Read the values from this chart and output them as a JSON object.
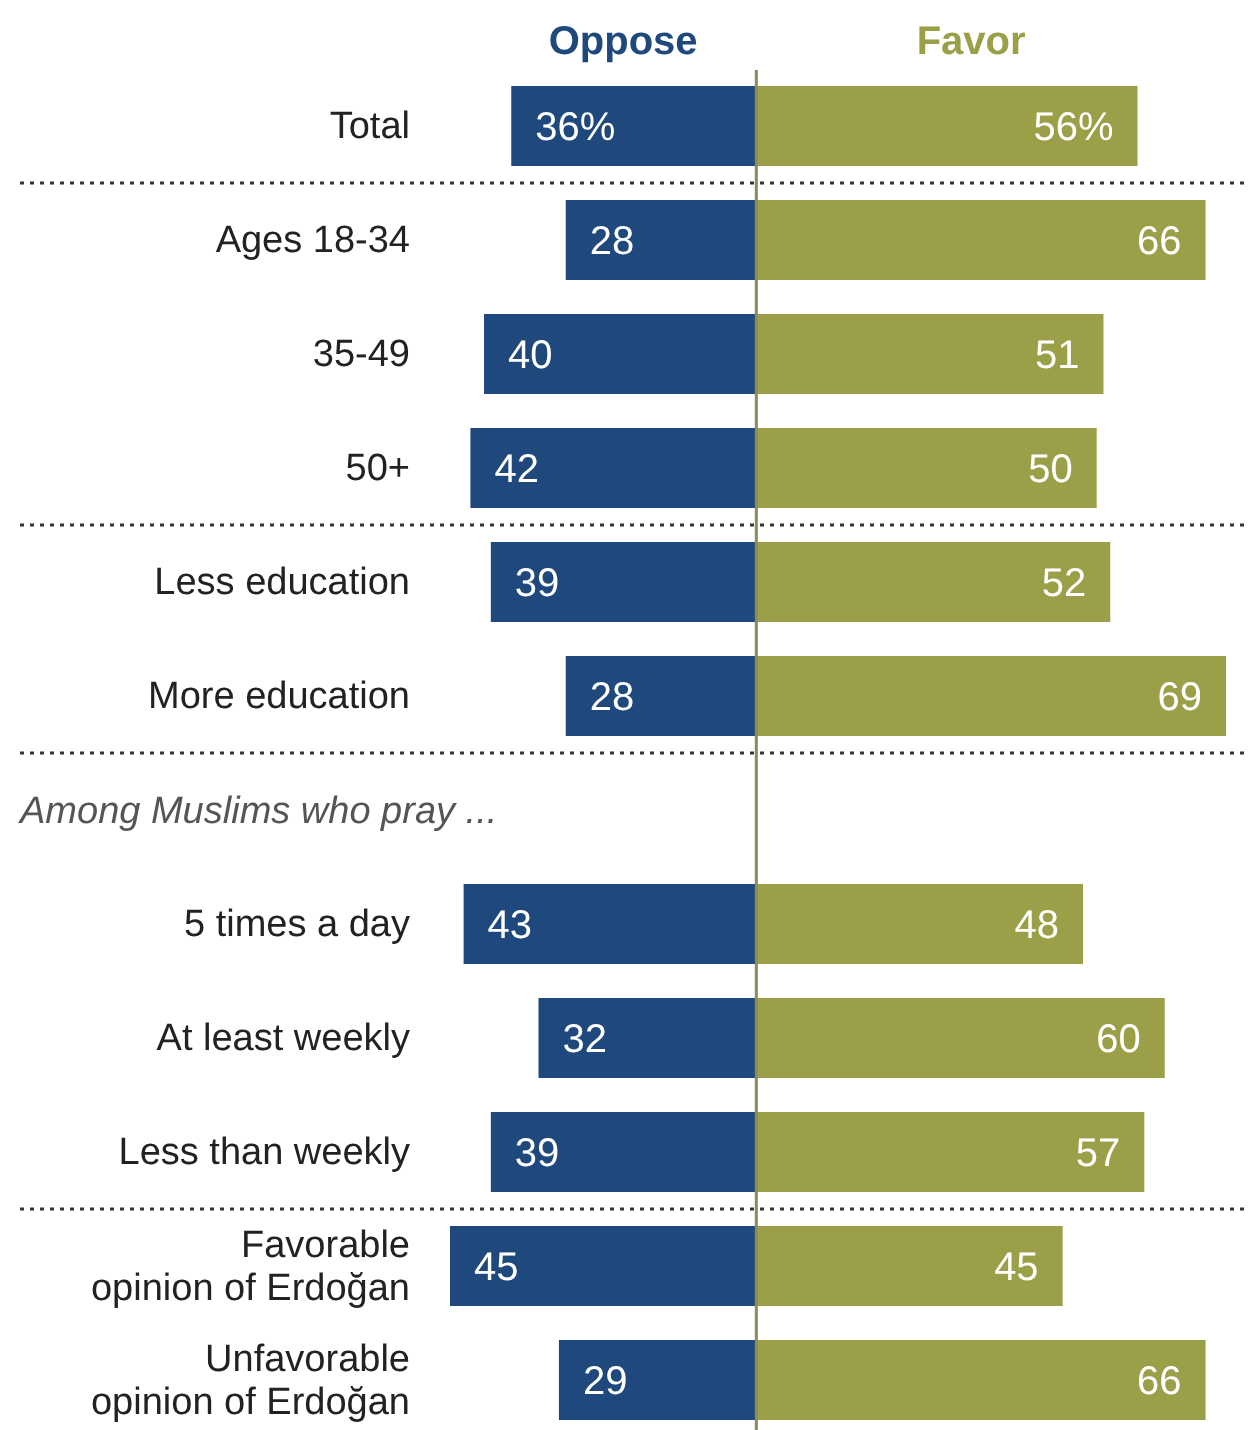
{
  "chart_data": [
    {
      "type": "bar",
      "orientation": "horizontal",
      "title": "Oppose",
      "xlim": [
        45,
        0
      ],
      "categories": [
        "Total",
        "Ages 18-34",
        "35-49",
        "50+",
        "Less education",
        "More education",
        null,
        "5 times a day",
        "At least weekly",
        "Less than weekly",
        "Favorable opinion of Erdoğan",
        "Unfavorable opinion of Erdoğan"
      ],
      "values": [
        36,
        28,
        40,
        42,
        39,
        28,
        null,
        43,
        32,
        39,
        45,
        29
      ],
      "color": "#1f497d",
      "value_labels": [
        "36%",
        "28",
        "40",
        "42",
        "39",
        "28",
        null,
        "43",
        "32",
        "39",
        "45",
        "29"
      ],
      "annotations": [
        "Among Muslims who pray ..."
      ]
    },
    {
      "type": "bar",
      "orientation": "horizontal",
      "title": "Favor",
      "xlim": [
        0,
        69
      ],
      "tick_labels": false,
      "categories": [
        null,
        null,
        null,
        null,
        null,
        null,
        null,
        null,
        null,
        null,
        null,
        null
      ],
      "values": [
        56,
        66,
        51,
        50,
        52,
        69,
        null,
        48,
        60,
        57,
        45,
        66
      ],
      "color": "#9a9f48",
      "value_labels": [
        "56%",
        "66",
        "51",
        "50",
        "52",
        "69",
        null,
        "48",
        "60",
        "57",
        "45",
        "66"
      ]
    }
  ]
}
